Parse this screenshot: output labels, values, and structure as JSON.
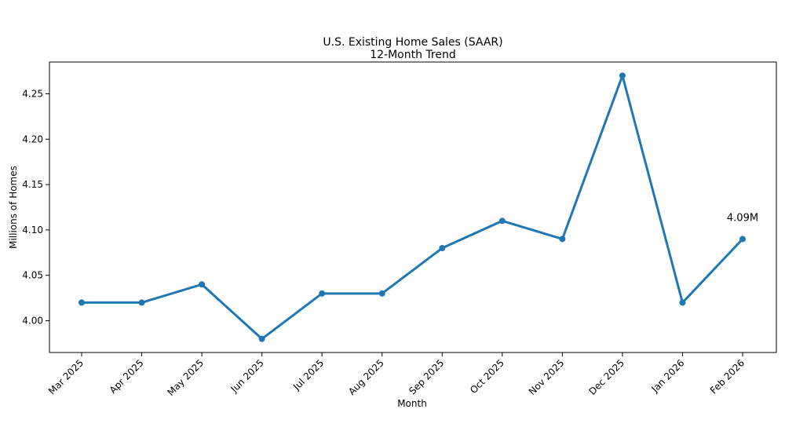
{
  "chart_data": {
    "type": "line",
    "title": "U.S. Existing Home Sales (SAAR)",
    "subtitle": "12-Month Trend",
    "xlabel": "Month",
    "ylabel": "Millions of Homes",
    "categories": [
      "Mar 2025",
      "Apr 2025",
      "May 2025",
      "Jun 2025",
      "Jul 2025",
      "Aug 2025",
      "Sep 2025",
      "Oct 2025",
      "Nov 2025",
      "Dec 2025",
      "Jan 2026",
      "Feb 2026"
    ],
    "series": [
      {
        "values": [
          4.02,
          4.02,
          4.04,
          3.98,
          4.03,
          4.03,
          4.08,
          4.11,
          4.09,
          4.27,
          4.02,
          4.09
        ]
      }
    ],
    "ylim": [
      3.965,
      4.285
    ],
    "yticks": [
      4.0,
      4.05,
      4.1,
      4.15,
      4.2,
      4.25
    ],
    "ytick_labels": [
      "4.00",
      "4.05",
      "4.10",
      "4.15",
      "4.20",
      "4.25"
    ],
    "grid": false,
    "line_color": "#1f77b4",
    "annotation": {
      "text": "4.09M",
      "category": "Feb 2026",
      "value": 4.09
    }
  }
}
